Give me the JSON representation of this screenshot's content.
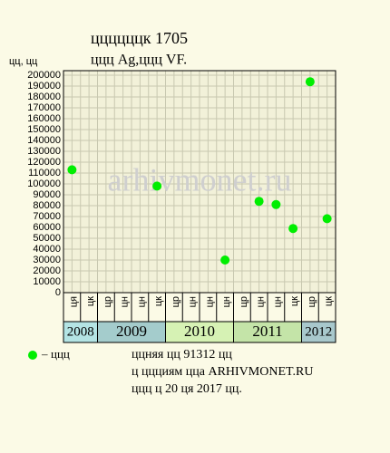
{
  "chart_data": {
    "type": "scatter",
    "title": "ццццццк 1705",
    "subtitle": "ццц Ag,ццц VF.",
    "y_label": "цц, цц",
    "categories": [
      "ця",
      "цк",
      "цр",
      "цн",
      "цн",
      "цк",
      "цр",
      "цн",
      "цн",
      "цн",
      "цр",
      "цн",
      "цн",
      "цк",
      "цр",
      "цк"
    ],
    "year_groups": [
      {
        "year": "2008",
        "count": 2,
        "color": "#b4e4e4"
      },
      {
        "year": "2009",
        "count": 4,
        "color": "#a4cccc"
      },
      {
        "year": "2010",
        "count": 4,
        "color": "#d6f2b4"
      },
      {
        "year": "2011",
        "count": 4,
        "color": "#c4e4a8"
      },
      {
        "year": "2012",
        "count": 2,
        "color": "#a8c8cc"
      }
    ],
    "series": [
      {
        "name": "ццц",
        "color": "#00ee00",
        "values": [
          113000,
          null,
          null,
          null,
          null,
          98000,
          null,
          null,
          null,
          30000,
          null,
          84000,
          81000,
          59000,
          194000,
          68000
        ]
      }
    ],
    "ylim": [
      0,
      200000
    ],
    "yticks": [
      0,
      10000,
      20000,
      30000,
      40000,
      50000,
      60000,
      70000,
      80000,
      90000,
      100000,
      110000,
      120000,
      130000,
      140000,
      150000,
      160000,
      170000,
      180000,
      190000,
      200000
    ],
    "grid": true,
    "watermark": "arhivmonet.ru",
    "notes": [
      "ццняя цц 91312 цц",
      "ц ццциям цца ARHIVMONET.RU",
      "ццц ц 20 ця 2017 цц."
    ]
  }
}
